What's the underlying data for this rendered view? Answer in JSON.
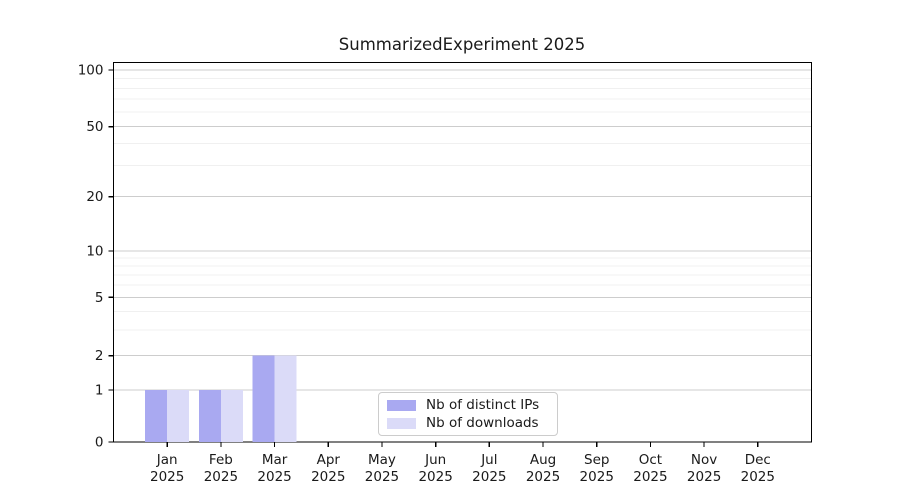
{
  "page": {
    "background_color": "#ffffff",
    "text_color": "#1a1a1a"
  },
  "chart_data": {
    "type": "bar",
    "title": "SummarizedExperiment 2025",
    "categories": [
      {
        "month": "Jan",
        "year": "2025"
      },
      {
        "month": "Feb",
        "year": "2025"
      },
      {
        "month": "Mar",
        "year": "2025"
      },
      {
        "month": "Apr",
        "year": "2025"
      },
      {
        "month": "May",
        "year": "2025"
      },
      {
        "month": "Jun",
        "year": "2025"
      },
      {
        "month": "Jul",
        "year": "2025"
      },
      {
        "month": "Aug",
        "year": "2025"
      },
      {
        "month": "Sep",
        "year": "2025"
      },
      {
        "month": "Oct",
        "year": "2025"
      },
      {
        "month": "Nov",
        "year": "2025"
      },
      {
        "month": "Dec",
        "year": "2025"
      }
    ],
    "series": [
      {
        "name": "Nb of distinct IPs",
        "color": "#a9a9f1",
        "values": [
          1,
          1,
          2,
          0,
          0,
          0,
          0,
          0,
          0,
          0,
          0,
          0
        ]
      },
      {
        "name": "Nb of downloads",
        "color": "#dbdbf8",
        "values": [
          1,
          1,
          2,
          0,
          0,
          0,
          0,
          0,
          0,
          0,
          0,
          0
        ]
      }
    ],
    "y_axis": {
      "scale": "log(1+x)",
      "range": [
        0,
        100
      ],
      "ticks": [
        0,
        1,
        2,
        5,
        10,
        20,
        50,
        100
      ],
      "minor_gridlines": [
        3,
        4,
        6,
        7,
        8,
        9,
        30,
        40,
        60,
        70,
        80,
        90
      ]
    },
    "x_axis": {
      "label": ""
    },
    "grid": {
      "major_color": "#cdcdcd",
      "minor_color": "#f0f0f0"
    },
    "axis": {
      "spine_color": "#000000",
      "tick_color": "#000000"
    },
    "legend": {
      "position": "bottom-center"
    }
  }
}
